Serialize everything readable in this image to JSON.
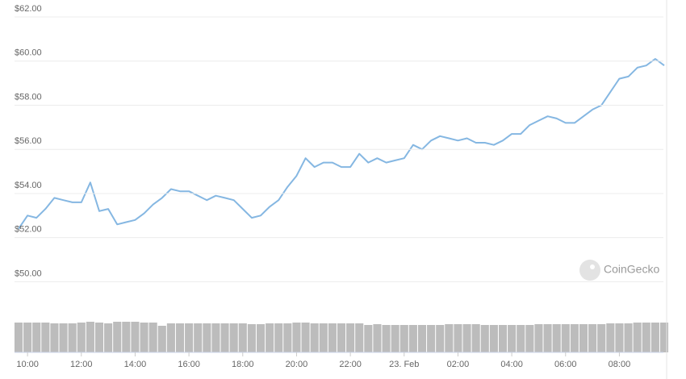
{
  "chart_data": {
    "type": "line",
    "watermark": "CoinGecko",
    "x": [
      "09:40",
      "10:00",
      "10:20",
      "10:40",
      "11:00",
      "11:20",
      "11:40",
      "12:00",
      "12:20",
      "12:40",
      "13:00",
      "13:20",
      "13:40",
      "14:00",
      "14:20",
      "14:40",
      "15:00",
      "15:20",
      "15:40",
      "16:00",
      "16:20",
      "16:40",
      "17:00",
      "17:20",
      "17:40",
      "18:00",
      "18:20",
      "18:40",
      "19:00",
      "19:20",
      "19:40",
      "20:00",
      "20:20",
      "20:40",
      "21:00",
      "21:20",
      "21:40",
      "22:00",
      "22:20",
      "22:40",
      "23:00",
      "23:20",
      "23:40",
      "00:00",
      "00:20",
      "00:40",
      "01:00",
      "01:20",
      "01:40",
      "02:00",
      "02:20",
      "02:40",
      "03:00",
      "03:20",
      "03:40",
      "04:00",
      "04:20",
      "04:40",
      "05:00",
      "05:20",
      "05:40",
      "06:00",
      "06:20",
      "06:40",
      "07:00",
      "07:20",
      "07:40",
      "08:00",
      "08:20",
      "08:40",
      "09:00",
      "09:20",
      "09:40"
    ],
    "series": [
      {
        "name": "Price",
        "color": "#85b7e2",
        "values": [
          52.4,
          53.0,
          52.9,
          53.3,
          53.8,
          53.7,
          53.6,
          53.6,
          54.5,
          53.2,
          53.3,
          52.6,
          52.7,
          52.8,
          53.1,
          53.5,
          53.8,
          54.2,
          54.1,
          54.1,
          53.9,
          53.7,
          53.9,
          53.8,
          53.7,
          53.3,
          52.9,
          53.0,
          53.4,
          53.7,
          54.3,
          54.8,
          55.6,
          55.2,
          55.4,
          55.4,
          55.2,
          55.2,
          55.8,
          55.4,
          55.6,
          55.4,
          55.5,
          55.6,
          56.2,
          56.0,
          56.4,
          56.6,
          56.5,
          56.4,
          56.5,
          56.3,
          56.3,
          56.2,
          56.4,
          56.7,
          56.7,
          57.1,
          57.3,
          57.5,
          57.4,
          57.2,
          57.2,
          57.5,
          57.8,
          58.0,
          58.6,
          59.2,
          59.3,
          59.7,
          59.8,
          60.1,
          59.8
        ]
      }
    ],
    "ylim": [
      48.7,
      62
    ],
    "yticks": [
      {
        "value": 50,
        "label": "$50.00"
      },
      {
        "value": 52,
        "label": "$52.00"
      },
      {
        "value": 54,
        "label": "$54.00"
      },
      {
        "value": 56,
        "label": "$56.00"
      },
      {
        "value": 58,
        "label": "$58.00"
      },
      {
        "value": 60,
        "label": "$60.00"
      },
      {
        "value": 62,
        "label": "$62.00"
      }
    ],
    "xticks": [
      {
        "value": "10:00",
        "label": "10:00"
      },
      {
        "value": "12:00",
        "label": "12:00"
      },
      {
        "value": "14:00",
        "label": "14:00"
      },
      {
        "value": "16:00",
        "label": "16:00"
      },
      {
        "value": "18:00",
        "label": "18:00"
      },
      {
        "value": "20:00",
        "label": "20:00"
      },
      {
        "value": "22:00",
        "label": "22:00"
      },
      {
        "value": "00:00",
        "label": "23. Feb"
      },
      {
        "value": "02:00",
        "label": "02:00"
      },
      {
        "value": "04:00",
        "label": "04:00"
      },
      {
        "value": "06:00",
        "label": "06:00"
      },
      {
        "value": "08:00",
        "label": "08:00"
      }
    ],
    "grid": true,
    "volume": {
      "color": "#bcbcbc",
      "ylim": [
        0,
        40
      ],
      "values": [
        37,
        37,
        37,
        37,
        36,
        36,
        36,
        37,
        38,
        37,
        36,
        38,
        38,
        38,
        37,
        37,
        33,
        36,
        36,
        36,
        36,
        36,
        36,
        36,
        36,
        36,
        35,
        35,
        36,
        36,
        36,
        37,
        37,
        36,
        36,
        36,
        36,
        36,
        36,
        34,
        35,
        34,
        34,
        34,
        34,
        34,
        34,
        34,
        35,
        35,
        35,
        35,
        34,
        34,
        34,
        34,
        34,
        34,
        35,
        35,
        35,
        35,
        35,
        35,
        35,
        35,
        36,
        36,
        36,
        37,
        37,
        37,
        37
      ]
    }
  }
}
